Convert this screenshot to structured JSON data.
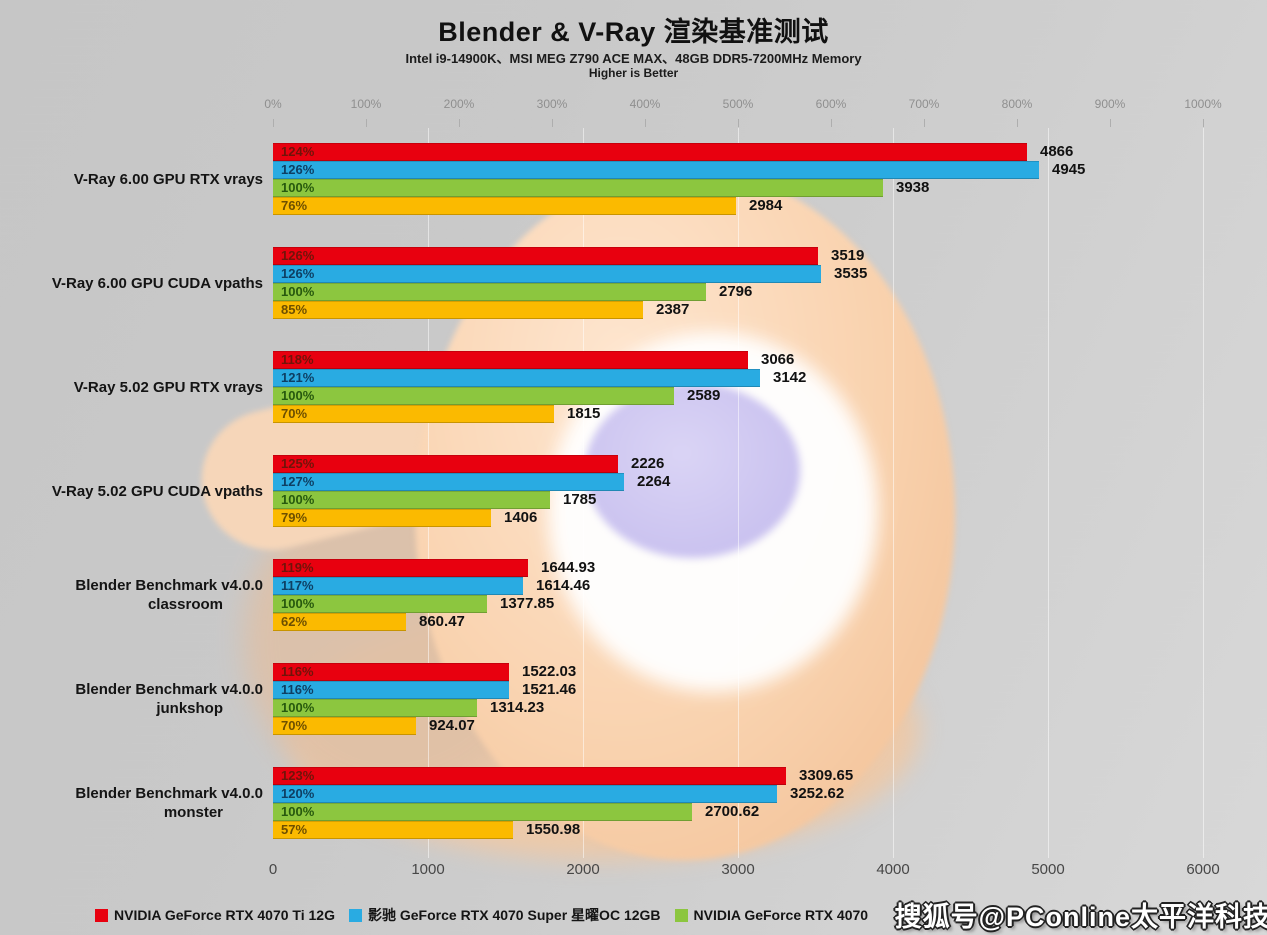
{
  "title": "Blender & V-Ray 渲染基准测试",
  "subtitle": "Intel i9-14900K、MSI MEG Z790 ACE MAX、48GB DDR5-7200MHz Memory",
  "note": "Higher is Better",
  "watermark_text": "搜狐号@PConline太平洋科技",
  "colors": {
    "background": "#cbcbcb",
    "red": "#e8000f",
    "blue": "#29abe2",
    "green": "#8cc63f",
    "yellow": "#fbba00",
    "gridline": "rgba(255,255,255,0.5)"
  },
  "legend": [
    {
      "label": "NVIDIA GeForce RTX 4070 Ti 12G",
      "color": "#e8000f"
    },
    {
      "label": "影驰 GeForce RTX 4070 Super 星曜OC 12GB",
      "color": "#29abe2"
    },
    {
      "label": "NVIDIA GeForce RTX 4070",
      "color": "#8cc63f"
    }
  ],
  "chart_data": {
    "type": "bar",
    "orientation": "horizontal",
    "title": "Blender & V-Ray 渲染基准测试",
    "top_axis": {
      "unit": "percent",
      "ticks": [
        "0%",
        "100%",
        "200%",
        "300%",
        "400%",
        "500%",
        "600%",
        "700%",
        "800%",
        "900%",
        "1000%"
      ],
      "range": [
        0,
        1000
      ]
    },
    "bottom_axis": {
      "unit": "score",
      "ticks": [
        "0",
        "1000",
        "2000",
        "3000",
        "4000",
        "5000",
        "6000"
      ],
      "range": [
        0,
        6000
      ]
    },
    "grid": true,
    "legend_position": "bottom",
    "categories": [
      [
        "V-Ray 6.00 GPU RTX vrays"
      ],
      [
        "V-Ray 6.00 GPU CUDA vpaths"
      ],
      [
        "V-Ray 5.02 GPU RTX vrays"
      ],
      [
        "V-Ray 5.02 GPU CUDA vpaths"
      ],
      [
        "Blender Benchmark v4.0.0",
        "classroom"
      ],
      [
        "Blender Benchmark v4.0.0",
        "junkshop"
      ],
      [
        "Blender Benchmark v4.0.0",
        "monster"
      ]
    ],
    "series": [
      {
        "name": "NVIDIA GeForce RTX 4070 Ti 12G",
        "color": "#e8000f",
        "pct_label_color": "#70140a",
        "values": [
          4866,
          3519,
          3066,
          2226,
          1644.93,
          1522.03,
          3309.65
        ],
        "value_labels": [
          "4866",
          "3519",
          "3066",
          "2226",
          "1644.93",
          "1522.03",
          "3309.65"
        ],
        "percent_labels": [
          "124%",
          "126%",
          "118%",
          "125%",
          "119%",
          "116%",
          "123%"
        ]
      },
      {
        "name": "影驰 GeForce RTX 4070 Super 星曜OC 12GB",
        "color": "#29abe2",
        "pct_label_color": "#0e3f63",
        "values": [
          4945,
          3535,
          3142,
          2264,
          1614.46,
          1521.46,
          3252.62
        ],
        "value_labels": [
          "4945",
          "3535",
          "3142",
          "2264",
          "1614.46",
          "1521.46",
          "3252.62"
        ],
        "percent_labels": [
          "126%",
          "126%",
          "121%",
          "127%",
          "117%",
          "116%",
          "120%"
        ]
      },
      {
        "name": "NVIDIA GeForce RTX 4070",
        "color": "#8cc63f",
        "pct_label_color": "#27590e",
        "values": [
          3938,
          2796,
          2589,
          1785,
          1377.85,
          1314.23,
          2700.62
        ],
        "value_labels": [
          "3938",
          "2796",
          "2589",
          "1785",
          "1377.85",
          "1314.23",
          "2700.62"
        ],
        "percent_labels": [
          "100%",
          "100%",
          "100%",
          "100%",
          "100%",
          "100%",
          "100%"
        ]
      },
      {
        "name": "",
        "color": "#fbba00",
        "pct_label_color": "#6d4f00",
        "values": [
          2984,
          2387,
          1815,
          1406,
          860.47,
          924.07,
          1550.98
        ],
        "value_labels": [
          "2984",
          "2387",
          "1815",
          "1406",
          "860.47",
          "924.07",
          "1550.98"
        ],
        "percent_labels": [
          "76%",
          "85%",
          "70%",
          "79%",
          "62%",
          "70%",
          "57%"
        ]
      }
    ]
  }
}
